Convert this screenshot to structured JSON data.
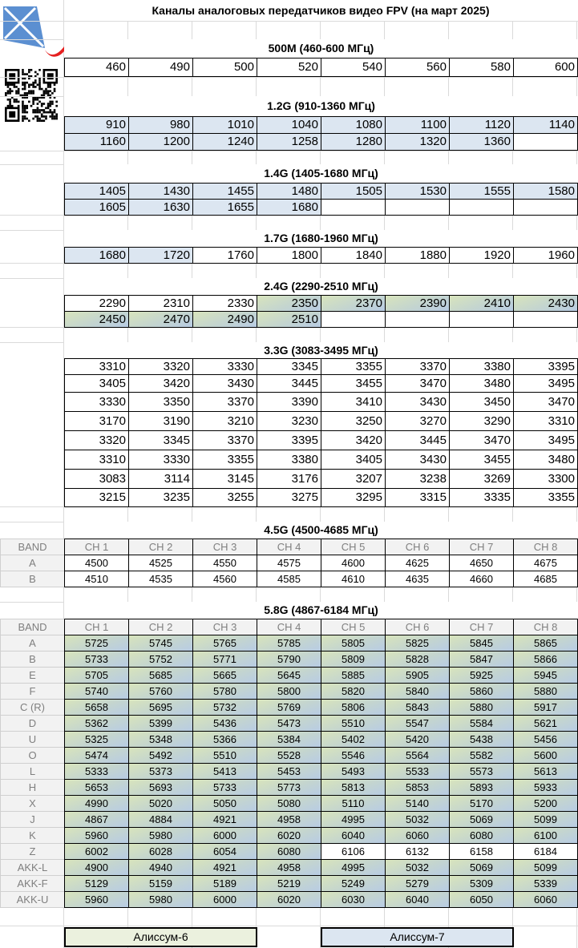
{
  "title": "Каналы аналоговых передатчиков видео FPV (на март 2025)",
  "colors": {
    "blue_fill": "#dce6f1",
    "gradient_from": "#d8e4bc",
    "gradient_to": "#b8cce4",
    "legend_6": "#ebf1de",
    "legend_7": "#dce6f1"
  },
  "icons": {
    "logo": "kite-logo-icon",
    "qr": "qr-code-icon"
  },
  "sections": [
    {
      "title": "500M (460-600 МГц)",
      "rows": [
        [
          "460",
          "490",
          "500",
          "520",
          "540",
          "560",
          "580",
          "600"
        ]
      ],
      "fills": [
        "wwwwwwww"
      ]
    },
    {
      "title": "1.2G (910-1360 МГц)",
      "rows": [
        [
          "910",
          "980",
          "1010",
          "1040",
          "1080",
          "1100",
          "1120",
          "1140"
        ],
        [
          "1160",
          "1200",
          "1240",
          "1258",
          "1280",
          "1320",
          "1360",
          ""
        ]
      ],
      "fills": [
        "bbbbbbbb",
        "bbbbbbbw"
      ]
    },
    {
      "title": "1.4G (1405-1680 МГц)",
      "rows": [
        [
          "1405",
          "1430",
          "1455",
          "1480",
          "1505",
          "1530",
          "1555",
          "1580"
        ],
        [
          "1605",
          "1630",
          "1655",
          "1680",
          "",
          "",
          "",
          ""
        ]
      ],
      "fills": [
        "bbbbbbbb",
        "bbbbwwww"
      ]
    },
    {
      "title": "1.7G (1680-1960 МГц)",
      "rows": [
        [
          "1680",
          "1720",
          "1760",
          "1800",
          "1840",
          "1880",
          "1920",
          "1960"
        ]
      ],
      "fills": [
        "bbwwwwww"
      ]
    },
    {
      "title": "2.4G (2290-2510 МГц)",
      "rows": [
        [
          "2290",
          "2310",
          "2330",
          "2350",
          "2370",
          "2390",
          "2410",
          "2430"
        ],
        [
          "2450",
          "2470",
          "2490",
          "2510",
          "",
          "",
          "",
          ""
        ]
      ],
      "fills": [
        "wwwggggg",
        "ggggwwww"
      ]
    },
    {
      "title": "3.3G (3083-3495 МГц)",
      "rows": [
        [
          "3310",
          "3320",
          "3330",
          "3345",
          "3355",
          "3370",
          "3380",
          "3395"
        ],
        [
          "3405",
          "3420",
          "3430",
          "3445",
          "3455",
          "3470",
          "3480",
          "3495"
        ],
        [
          "3330",
          "3350",
          "3370",
          "3390",
          "3410",
          "3430",
          "3450",
          "3470"
        ],
        [
          "3170",
          "3190",
          "3210",
          "3230",
          "3250",
          "3270",
          "3290",
          "3310"
        ],
        [
          "3320",
          "3345",
          "3370",
          "3395",
          "3420",
          "3445",
          "3470",
          "3495"
        ],
        [
          "3310",
          "3330",
          "3355",
          "3380",
          "3405",
          "3430",
          "3455",
          "3480"
        ],
        [
          "3083",
          "3114",
          "3145",
          "3176",
          "3207",
          "3238",
          "3269",
          "3300"
        ],
        [
          "3215",
          "3235",
          "3255",
          "3275",
          "3295",
          "3315",
          "3335",
          "3355"
        ]
      ],
      "fills": [
        "wwwwwwww",
        "wwwwwwww",
        "wwwwwwww",
        "wwwwwwww",
        "wwwwwwww",
        "wwwwwwww",
        "wwwwwwww",
        "wwwwwwww"
      ]
    }
  ],
  "band_tables": [
    {
      "title": "4.5G (4500-4685 МГц)",
      "header": [
        "BAND",
        "CH 1",
        "CH 2",
        "CH 3",
        "CH 4",
        "CH 5",
        "CH 6",
        "CH 7",
        "CH 8"
      ],
      "rows": [
        {
          "band": "A",
          "values": [
            "4500",
            "4525",
            "4550",
            "4575",
            "4600",
            "4625",
            "4650",
            "4675"
          ],
          "fill": "wwwwwwww"
        },
        {
          "band": "B",
          "values": [
            "4510",
            "4535",
            "4560",
            "4585",
            "4610",
            "4635",
            "4660",
            "4685"
          ],
          "fill": "wwwwwwww"
        }
      ]
    },
    {
      "title": "5.8G (4867-6184 МГц)",
      "header": [
        "BAND",
        "CH 1",
        "CH 2",
        "CH 3",
        "CH 4",
        "CH 5",
        "CH 6",
        "CH 7",
        "CH 8"
      ],
      "rows": [
        {
          "band": "A",
          "values": [
            "5725",
            "5745",
            "5765",
            "5785",
            "5805",
            "5825",
            "5845",
            "5865"
          ],
          "fill": "gggggggg"
        },
        {
          "band": "B",
          "values": [
            "5733",
            "5752",
            "5771",
            "5790",
            "5809",
            "5828",
            "5847",
            "5866"
          ],
          "fill": "gggggggg"
        },
        {
          "band": "E",
          "values": [
            "5705",
            "5685",
            "5665",
            "5645",
            "5885",
            "5905",
            "5925",
            "5945"
          ],
          "fill": "gggggggg"
        },
        {
          "band": "F",
          "values": [
            "5740",
            "5760",
            "5780",
            "5800",
            "5820",
            "5840",
            "5860",
            "5880"
          ],
          "fill": "gggggggg"
        },
        {
          "band": "C (R)",
          "values": [
            "5658",
            "5695",
            "5732",
            "5769",
            "5806",
            "5843",
            "5880",
            "5917"
          ],
          "fill": "gggggggg"
        },
        {
          "band": "D",
          "values": [
            "5362",
            "5399",
            "5436",
            "5473",
            "5510",
            "5547",
            "5584",
            "5621"
          ],
          "fill": "gggggggg"
        },
        {
          "band": "U",
          "values": [
            "5325",
            "5348",
            "5366",
            "5384",
            "5402",
            "5420",
            "5438",
            "5456"
          ],
          "fill": "gggggggg"
        },
        {
          "band": "O",
          "values": [
            "5474",
            "5492",
            "5510",
            "5528",
            "5546",
            "5564",
            "5582",
            "5600"
          ],
          "fill": "gggggggg"
        },
        {
          "band": "L",
          "values": [
            "5333",
            "5373",
            "5413",
            "5453",
            "5493",
            "5533",
            "5573",
            "5613"
          ],
          "fill": "gggggggg"
        },
        {
          "band": "H",
          "values": [
            "5653",
            "5693",
            "5733",
            "5773",
            "5813",
            "5853",
            "5893",
            "5933"
          ],
          "fill": "gggggggg"
        },
        {
          "band": "X",
          "values": [
            "4990",
            "5020",
            "5050",
            "5080",
            "5110",
            "5140",
            "5170",
            "5200"
          ],
          "fill": "gggggggg"
        },
        {
          "band": "J",
          "values": [
            "4867",
            "4884",
            "4921",
            "4958",
            "4995",
            "5032",
            "5069",
            "5099"
          ],
          "fill": "gggggggg"
        },
        {
          "band": "K",
          "values": [
            "5960",
            "5980",
            "6000",
            "6020",
            "6040",
            "6060",
            "6080",
            "6100"
          ],
          "fill": "gggggggg"
        },
        {
          "band": "Z",
          "values": [
            "6002",
            "6028",
            "6054",
            "6080",
            "6106",
            "6132",
            "6158",
            "6184"
          ],
          "fill": "ggggwwww"
        },
        {
          "band": "AKK-L",
          "values": [
            "4900",
            "4940",
            "4921",
            "4958",
            "4995",
            "5032",
            "5069",
            "5099"
          ],
          "fill": "gggggggg"
        },
        {
          "band": "AKK-F",
          "values": [
            "5129",
            "5159",
            "5189",
            "5219",
            "5249",
            "5279",
            "5309",
            "5339"
          ],
          "fill": "gggggggg"
        },
        {
          "band": "AKK-U",
          "values": [
            "5960",
            "5980",
            "6000",
            "6020",
            "6030",
            "6040",
            "6050",
            "6060"
          ],
          "fill": "gggggggg"
        }
      ]
    }
  ],
  "legend": [
    {
      "label": "Алиссум-6"
    },
    {
      "label": "Алиссум-7"
    }
  ]
}
